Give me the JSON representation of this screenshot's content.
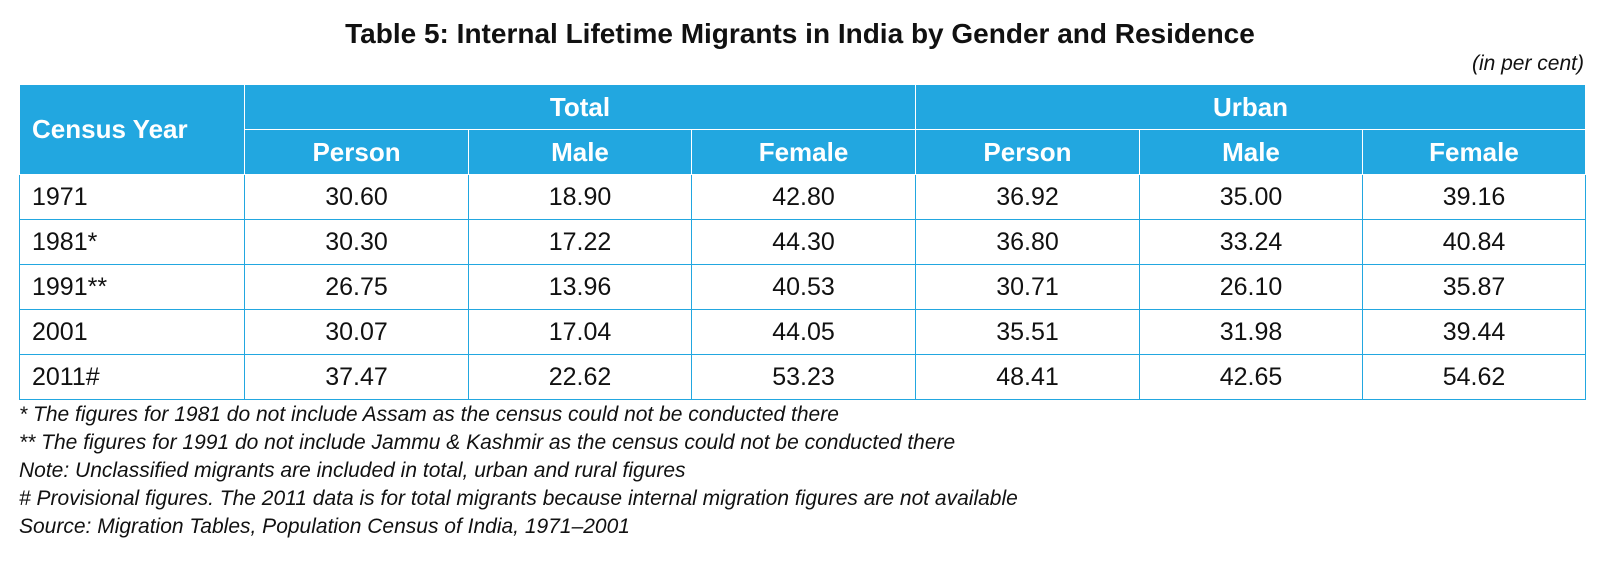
{
  "title": "Table 5: Internal Lifetime Migrants in India by Gender and Residence",
  "unit_note": "(in per cent)",
  "header": {
    "census_year": "Census Year",
    "group_total": "Total",
    "group_urban": "Urban",
    "person": "Person",
    "male": "Male",
    "female": "Female"
  },
  "rows": [
    {
      "year": "1971",
      "total_person": "30.60",
      "total_male": "18.90",
      "total_female": "42.80",
      "urban_person": "36.92",
      "urban_male": "35.00",
      "urban_female": "39.16"
    },
    {
      "year": "1981*",
      "total_person": "30.30",
      "total_male": "17.22",
      "total_female": "44.30",
      "urban_person": "36.80",
      "urban_male": "33.24",
      "urban_female": "40.84"
    },
    {
      "year": "1991**",
      "total_person": "26.75",
      "total_male": "13.96",
      "total_female": "40.53",
      "urban_person": "30.71",
      "urban_male": "26.10",
      "urban_female": "35.87"
    },
    {
      "year": "2001",
      "total_person": "30.07",
      "total_male": "17.04",
      "total_female": "44.05",
      "urban_person": "35.51",
      "urban_male": "31.98",
      "urban_female": "39.44"
    },
    {
      "year": "2011#",
      "total_person": "37.47",
      "total_male": "22.62",
      "total_female": "53.23",
      "urban_person": "48.41",
      "urban_male": "42.65",
      "urban_female": "54.62"
    }
  ],
  "footnotes": [
    "* The figures for 1981 do not include Assam as the census could not be conducted there",
    "** The figures for 1991 do not include Jammu & Kashmir as the census could not be conducted there",
    "Note: Unclassified migrants are included in total, urban and rural figures",
    "# Provisional figures. The 2011 data is for total migrants because internal migration figures are not available",
    "Source: Migration Tables, Population Census of India, 1971–2001"
  ],
  "colors": {
    "header_bg": "#22a7e0",
    "header_text": "#ffffff",
    "border": "#22a7e0"
  }
}
